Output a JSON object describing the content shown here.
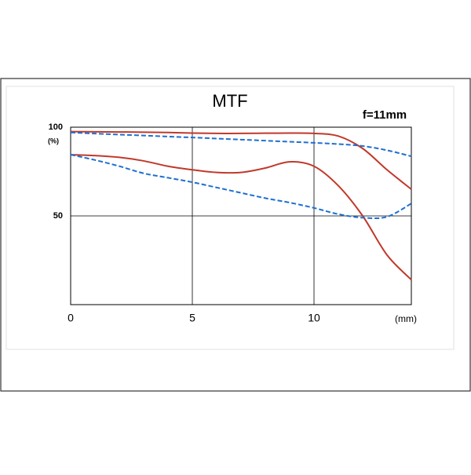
{
  "chart_data": {
    "type": "line",
    "title": "MTF",
    "subtitle": "f=11mm",
    "y_unit": "(%)",
    "x_label": "(mm)",
    "x": [
      0,
      1,
      2,
      3,
      4,
      5,
      6,
      7,
      8,
      9,
      10,
      11,
      12,
      13,
      14
    ],
    "xlim": [
      0,
      14
    ],
    "xticks": [
      0,
      5,
      10
    ],
    "ylim": [
      0,
      100
    ],
    "yticks": [
      50,
      100
    ],
    "grid": true,
    "series": [
      {
        "color": "#c0392b",
        "dash": false,
        "values": [
          97.5,
          97.4,
          97.3,
          97.2,
          97,
          96.7,
          96.5,
          96.5,
          96.6,
          96.7,
          96.5,
          95,
          88,
          76,
          65
        ]
      },
      {
        "color": "#1f6fd0",
        "dash": true,
        "values": [
          97,
          96.4,
          95.8,
          95.3,
          94.7,
          94.2,
          93.6,
          93,
          92.4,
          91.8,
          91.2,
          90.5,
          89.4,
          87,
          83.6
        ]
      },
      {
        "color": "#c0392b",
        "dash": false,
        "values": [
          84.5,
          84,
          83,
          81,
          78,
          76,
          74.5,
          74.5,
          77,
          80.5,
          78,
          67,
          50,
          28,
          14
        ]
      },
      {
        "color": "#1f6fd0",
        "dash": true,
        "values": [
          84.5,
          81.5,
          78,
          74,
          71.5,
          69,
          66,
          63,
          60,
          57.5,
          54.5,
          51,
          49,
          49.5,
          57
        ]
      }
    ]
  }
}
